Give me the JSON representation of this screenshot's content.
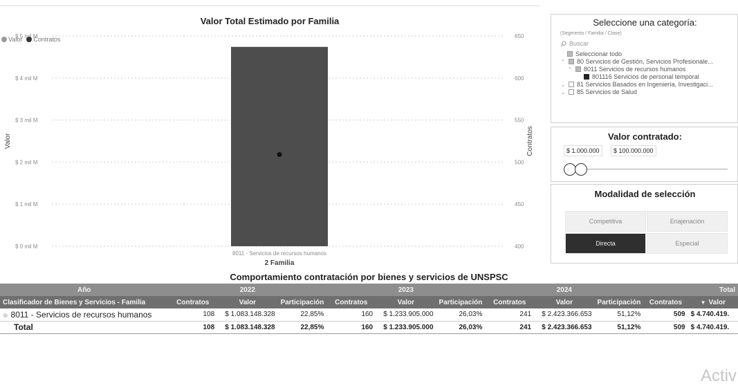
{
  "chart": {
    "title": "Valor Total Estimado por Familia",
    "legend": [
      {
        "label": "Valor",
        "color": "#9a9a9a"
      },
      {
        "label": "Contratos",
        "color": "#333333"
      }
    ],
    "ylabel": "Valor",
    "y2label": "Contratos",
    "xlabel": "2 Familia",
    "category_label": "8011 - Servicios de recursos humanos"
  },
  "chart_data": {
    "type": "bar",
    "categories": [
      "8011 - Servicios de recursos humanos"
    ],
    "series": [
      {
        "name": "Valor",
        "values": [
          4740419
        ],
        "axis": "left",
        "color": "#4d4d4d"
      },
      {
        "name": "Contratos",
        "values": [
          509
        ],
        "axis": "right",
        "color": "#333333",
        "mark": "point"
      }
    ],
    "y_ticks": [
      "$ 0 mil M",
      "$ 1 mil M",
      "$ 2 mil M",
      "$ 3 mil M",
      "$ 4 mil M",
      "$ 5 mil M"
    ],
    "y2_ticks": [
      "400",
      "450",
      "500",
      "550",
      "600",
      "650"
    ],
    "ylim": [
      0,
      5000000
    ],
    "y2lim": [
      400,
      650
    ],
    "xlabel": "2 Familia",
    "ylabel": "Valor",
    "y2label": "Contratos",
    "title": "Valor Total Estimado por Familia",
    "grid": true,
    "legend": "top-left"
  },
  "category_filter": {
    "title": "Seleccione una categoría:",
    "subtitle": "(Segmento / Familia / Clase)",
    "search_placeholder": "Buscar",
    "items": [
      {
        "label": "Seleccionar todo",
        "state": "partial",
        "chevron": ""
      },
      {
        "label": "80  Servicios de Gestión, Servicios Profesionale...",
        "state": "partial",
        "chevron": "^"
      },
      {
        "label": "8011  Servicios de recursos humanos",
        "state": "partial",
        "chevron": "^"
      },
      {
        "label": "801116  Servicios de personal temporal",
        "state": "checked",
        "chevron": ""
      },
      {
        "label": "81  Servicios Basados en Ingeniería, Investigaci...",
        "state": "unchecked",
        "chevron": "v"
      },
      {
        "label": "85  Servicios de Salud",
        "state": "unchecked",
        "chevron": "v"
      }
    ]
  },
  "valor_filter": {
    "title": "Valor contratado:",
    "min": "$ 1.000.000",
    "max": "$ 100.000.000"
  },
  "modalidad": {
    "title": "Modalidad de selección",
    "options": [
      {
        "label": "Competitiva",
        "active": false
      },
      {
        "label": "Enajenación",
        "active": false
      },
      {
        "label": "Directa",
        "active": true
      },
      {
        "label": "Especial",
        "active": false
      }
    ]
  },
  "table": {
    "title": "Comportamiento contratación por bienes y servicios de UNSPSC",
    "year_header": "Año",
    "years": [
      "2022",
      "2023",
      "2024",
      "Total"
    ],
    "row_header": "Clasificador de Bienes y Servicios - Familia",
    "columns": {
      "contratos": "Contratos",
      "valor": "Valor",
      "participacion": "Participación"
    },
    "rows": [
      {
        "name": "8011 - Servicios de recursos humanos",
        "c2022": "108",
        "v2022": "$ 1.083.148.328",
        "p2022": "22,85%",
        "c2023": "160",
        "v2023": "$ 1.233.905.000",
        "p2023": "26,03%",
        "c2024": "241",
        "v2024": "$ 2.423.366.653",
        "p2024": "51,12%",
        "ctotal": "509",
        "vtotal": "$ 4.740.419."
      },
      {
        "name": "Total",
        "c2022": "108",
        "v2022": "$ 1.083.148.328",
        "p2022": "22,85%",
        "c2023": "160",
        "v2023": "$ 1.233.905.000",
        "p2023": "26,03%",
        "c2024": "241",
        "v2024": "$ 2.423.366.653",
        "p2024": "51,12%",
        "ctotal": "509",
        "vtotal": "$ 4.740.419."
      }
    ]
  },
  "watermark": "Activ"
}
